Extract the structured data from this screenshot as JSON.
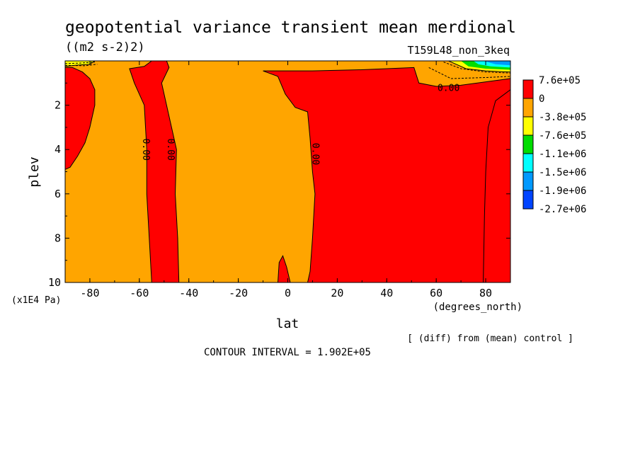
{
  "chart_data": {
    "type": "heatmap",
    "title": "geopotential variance transient mean merdional",
    "units": "((m2 s-2)2)",
    "run_label": "T159L48_non_3keq",
    "xlabel": "lat",
    "xunits": "(degrees_north)",
    "ylabel": "plev",
    "yunits": "(x1E4 Pa)",
    "xlim": [
      -90,
      90
    ],
    "ylim": [
      10,
      0
    ],
    "x_ticks": [
      -80,
      -60,
      -40,
      -20,
      0,
      20,
      40,
      60,
      80
    ],
    "x_tick_labels": [
      "-80",
      "-60",
      "-40",
      "-20",
      "0",
      "20",
      "40",
      "60",
      "80"
    ],
    "y_ticks": [
      2,
      4,
      6,
      8,
      10
    ],
    "y_tick_labels": [
      "2",
      "4",
      "6",
      "8",
      "10"
    ],
    "contour_interval_text": "CONTOUR INTERVAL = 1.902E+05",
    "note": "[ (diff) from (mean) control ]",
    "contour_labels": [
      "0.00",
      "0.00",
      "0.00",
      "0.00"
    ],
    "legend": {
      "placement": "right",
      "labels": [
        "7.6e+05",
        "0",
        "-3.8e+05",
        "-7.6e+05",
        "-1.1e+06",
        "-1.5e+06",
        "-1.9e+06",
        "-2.7e+06"
      ],
      "colors": [
        "#ff0000",
        "#ffa500",
        "#ffff00",
        "#00dd00",
        "#00ffff",
        "#0099ff",
        "#0044ff"
      ]
    },
    "regions": {
      "positive_color": "#ff0000",
      "zero_band_color": "#ffa500",
      "positive_areas": [
        {
          "name": "south-polar-cell",
          "boundary": [
            [
              -90,
              0.3
            ],
            [
              -87,
              0.3
            ],
            [
              -83,
              0.5
            ],
            [
              -80,
              0.8
            ],
            [
              -78,
              1.3
            ],
            [
              -78,
              2.0
            ],
            [
              -80,
              3.0
            ],
            [
              -82,
              3.7
            ],
            [
              -85,
              4.3
            ],
            [
              -88,
              4.8
            ],
            [
              -90,
              4.9
            ]
          ]
        },
        {
          "name": "southern-column",
          "boundary": [
            [
              -64,
              0.35
            ],
            [
              -58,
              0.25
            ],
            [
              -55,
              0.0
            ],
            [
              -49,
              0.0
            ],
            [
              -48,
              0.3
            ],
            [
              -51,
              1.0
            ],
            [
              -49,
              2.0
            ],
            [
              -47,
              3.0
            ],
            [
              -45,
              4.0
            ],
            [
              -45.5,
              6.0
            ],
            [
              -44.5,
              8.0
            ],
            [
              -44,
              10.0
            ],
            [
              -55,
              10.0
            ],
            [
              -56,
              8.0
            ],
            [
              -57,
              6.0
            ],
            [
              -57,
              4.0
            ],
            [
              -58,
              2.0
            ],
            [
              -62,
              1.0
            ]
          ]
        },
        {
          "name": "equatorial-plume",
          "boundary": [
            [
              -4,
              10.0
            ],
            [
              -3.5,
              9.1
            ],
            [
              -2,
              8.8
            ],
            [
              -0.5,
              9.3
            ],
            [
              1,
              10.0
            ]
          ]
        },
        {
          "name": "northern-block",
          "boundary": [
            [
              -10,
              0.45
            ],
            [
              -4,
              0.7
            ],
            [
              -1,
              1.5
            ],
            [
              3,
              2.1
            ],
            [
              8,
              2.3
            ],
            [
              9,
              3.5
            ],
            [
              10,
              5.0
            ],
            [
              11,
              6.0
            ],
            [
              10,
              8.0
            ],
            [
              9,
              9.5
            ],
            [
              8,
              10.0
            ],
            [
              90,
              10.0
            ],
            [
              90,
              0.8
            ],
            [
              83,
              0.9
            ],
            [
              70,
              1.1
            ],
            [
              60,
              1.15
            ],
            [
              53,
              1.0
            ],
            [
              51,
              0.3
            ],
            [
              30,
              0.4
            ],
            [
              10,
              0.45
            ]
          ]
        }
      ],
      "negative_area": {
        "name": "north-polar-upper",
        "boundary": [
          [
            65,
            0.0
          ],
          [
            90,
            0.0
          ],
          [
            90,
            0.5
          ],
          [
            80,
            0.45
          ],
          [
            72,
            0.35
          ],
          [
            68,
            0.15
          ]
        ]
      },
      "positive_outline": {
        "name": "north-polar-line",
        "points": [
          [
            90,
            1.3
          ],
          [
            84,
            1.8
          ],
          [
            81,
            3.0
          ],
          [
            80,
            5.0
          ],
          [
            79.5,
            7.0
          ],
          [
            79,
            10.0
          ]
        ]
      }
    }
  }
}
